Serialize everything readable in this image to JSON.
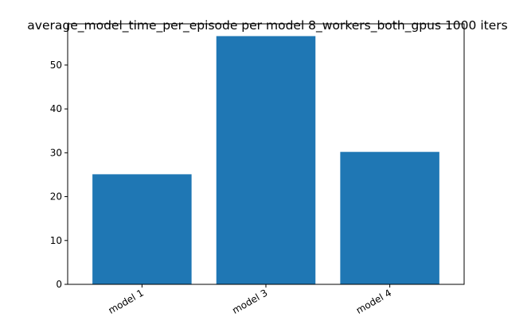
{
  "chart_data": {
    "type": "bar",
    "title": "average_model_time_per_episode per model 8_workers_both_gpus 1000 iters",
    "categories": [
      "model 1",
      "model 3",
      "model 4"
    ],
    "values": [
      25.1,
      56.6,
      30.2
    ],
    "ylim": [
      0,
      59.4
    ],
    "yticks": [
      0,
      10,
      20,
      30,
      40,
      50
    ],
    "xlabel": "",
    "ylabel": "",
    "grid": false,
    "legend": "none",
    "bar_color": "#1f77b4"
  }
}
